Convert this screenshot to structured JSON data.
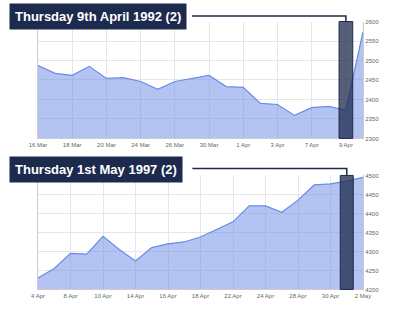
{
  "chart_data": [
    {
      "type": "area",
      "title": "Thursday 9th April 1992 (2)",
      "categories": [
        "16 Mar",
        null,
        "18 Mar",
        null,
        "20 Mar",
        null,
        "24 Mar",
        null,
        "26 Mar",
        null,
        "30 Mar",
        null,
        "1 Apr",
        null,
        "3 Apr",
        null,
        "7 Apr",
        null,
        "9 Apr",
        null
      ],
      "values": [
        2487,
        2467,
        2462,
        2485,
        2454,
        2456,
        2446,
        2426,
        2446,
        2454,
        2462,
        2433,
        2431,
        2390,
        2387,
        2359,
        2379,
        2382,
        2372,
        2574
      ],
      "color": "#6a8ae6",
      "ylim": [
        2300,
        2600
      ],
      "yticks": [
        2300,
        2350,
        2400,
        2450,
        2500,
        2550,
        2600
      ],
      "grid": true
    },
    {
      "type": "area",
      "title": "Thursday 1st May 1997 (2)",
      "categories": [
        "4 Apr",
        null,
        "8 Apr",
        null,
        "10 Apr",
        null,
        "14 Apr",
        null,
        "16 Apr",
        null,
        "18 Apr",
        null,
        "22 Apr",
        null,
        "24 Apr",
        null,
        "28 Apr",
        null,
        "30 Apr",
        null,
        "2 May"
      ],
      "values": [
        4230,
        4255,
        4295,
        4293,
        4340,
        4305,
        4275,
        4310,
        4320,
        4325,
        4338,
        4358,
        4378,
        4420,
        4420,
        4403,
        4435,
        4475,
        4478,
        4485,
        4495
      ],
      "color": "#6a8ae6",
      "ylim": [
        4200,
        4500
      ],
      "yticks": [
        4200,
        4250,
        4300,
        4350,
        4400,
        4450,
        4500
      ],
      "grid": true
    }
  ]
}
